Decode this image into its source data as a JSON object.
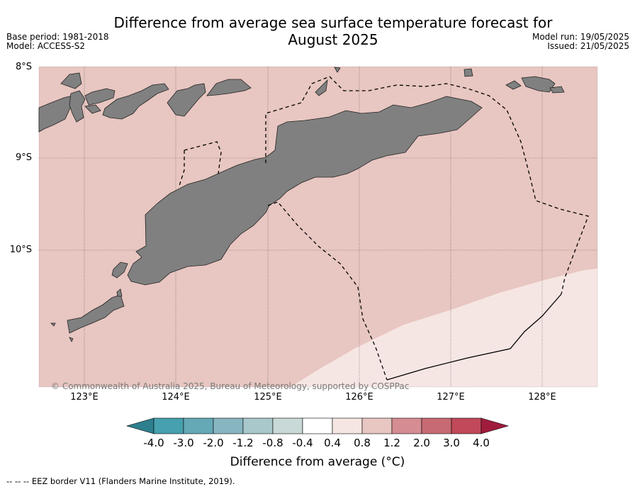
{
  "title_line1": "Difference from average sea surface temperature forecast for",
  "title_line2": "August 2025",
  "base_period": "Base period: 1981-2018",
  "model": "Model: ACCESS-S2",
  "model_run": "Model run: 19/05/2025",
  "issued": "Issued: 21/05/2025",
  "copyright": "© Commonwealth of Australia 2025, Bureau of Meteorology, supported by COSPPac",
  "lat_labels": [
    "8°S",
    "9°S",
    "10°S"
  ],
  "lon_labels": [
    "123°E",
    "124°E",
    "125°E",
    "126°E",
    "127°E",
    "128°E"
  ],
  "colorbar": {
    "title": "Difference from average (°C)",
    "ticks": [
      "-4.0",
      "-3.0",
      "-2.0",
      "-1.2",
      "-0.8",
      "-0.4",
      "0.4",
      "0.8",
      "1.2",
      "2.0",
      "3.0",
      "4.0"
    ],
    "colors": [
      "#2e7f8d",
      "#46a0ae",
      "#65a9b6",
      "#87b6c1",
      "#a9c8cb",
      "#c9d9d8",
      "#ffffff",
      "#f6e6e3",
      "#e8c6c1",
      "#d58c93",
      "#c86a74",
      "#c0495a",
      "#a01c3c"
    ]
  },
  "legend_note": "--  --  -- EEZ border V11 (Flanders Marine Institute, 2019).",
  "colors": {
    "warm_anomaly_fill": "#e8c6c1",
    "mild_anomaly_fill": "#f6e6e3",
    "land": "#808080"
  }
}
